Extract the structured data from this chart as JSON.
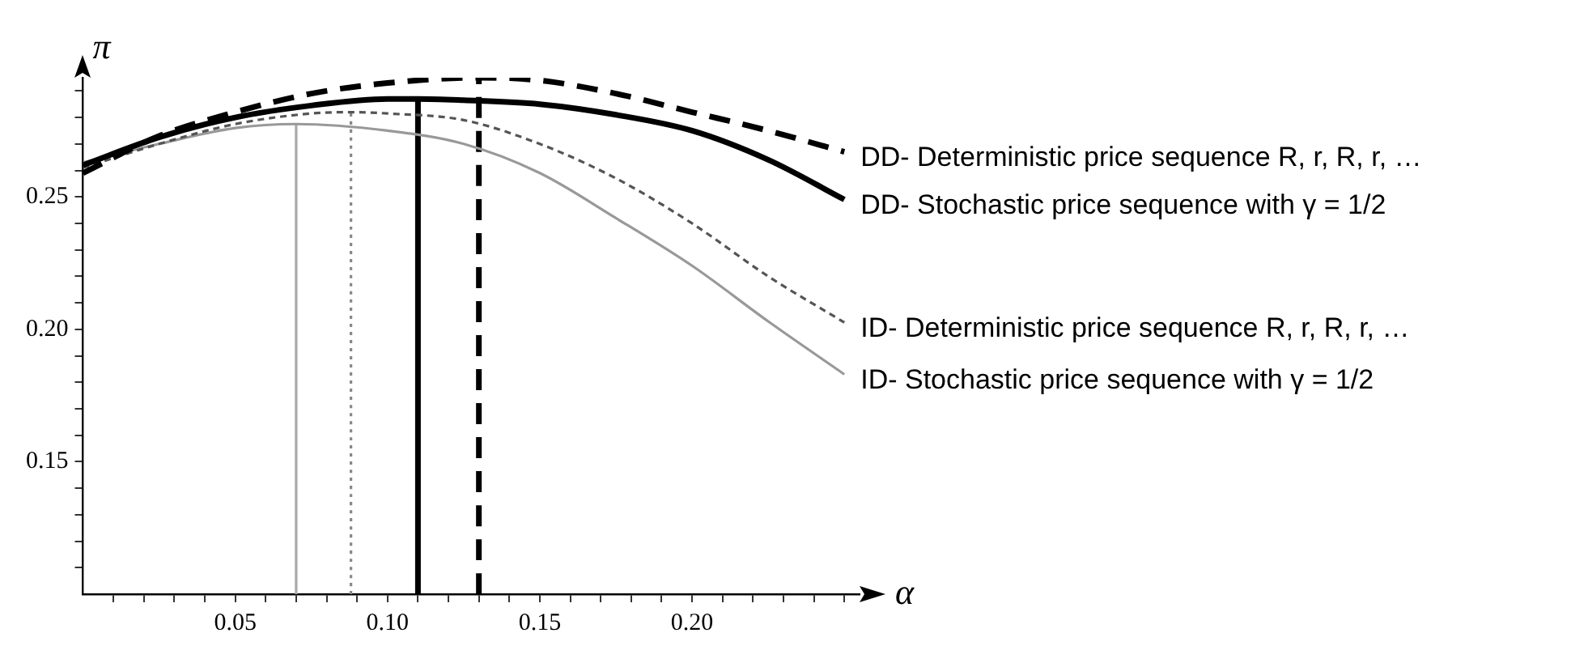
{
  "chart_data": {
    "type": "line",
    "xlabel": "α",
    "ylabel": "π",
    "xlim": [
      0,
      0.255
    ],
    "ylim": [
      0.1,
      0.295
    ],
    "xticks": [
      {
        "value": 0.01,
        "label": null
      },
      {
        "value": 0.02,
        "label": null
      },
      {
        "value": 0.03,
        "label": null
      },
      {
        "value": 0.04,
        "label": null
      },
      0.05,
      {
        "value": 0.06,
        "label": null
      },
      {
        "value": 0.07,
        "label": null
      },
      {
        "value": 0.08,
        "label": null
      },
      {
        "value": 0.09,
        "label": null
      },
      {
        "value": 0.1,
        "label": "0.10"
      },
      {
        "value": 0.11,
        "label": null
      },
      {
        "value": 0.12,
        "label": null
      },
      {
        "value": 0.13,
        "label": null
      },
      {
        "value": 0.14,
        "label": null
      },
      0.15,
      {
        "value": 0.16,
        "label": null
      },
      {
        "value": 0.17,
        "label": null
      },
      {
        "value": 0.18,
        "label": null
      },
      {
        "value": 0.19,
        "label": null
      },
      {
        "value": 0.2,
        "label": "0.20"
      },
      {
        "value": 0.21,
        "label": null
      },
      {
        "value": 0.22,
        "label": null
      },
      {
        "value": 0.23,
        "label": null
      },
      {
        "value": 0.24,
        "label": null
      },
      {
        "value": 0.25,
        "label": null
      }
    ],
    "yticks": [
      {
        "value": 0.11,
        "label": null
      },
      {
        "value": 0.12,
        "label": null
      },
      {
        "value": 0.13,
        "label": null
      },
      {
        "value": 0.14,
        "label": null
      },
      0.15,
      {
        "value": 0.16,
        "label": null
      },
      {
        "value": 0.17,
        "label": null
      },
      {
        "value": 0.18,
        "label": null
      },
      {
        "value": 0.19,
        "label": null
      },
      {
        "value": 0.2,
        "label": "0.20"
      },
      {
        "value": 0.21,
        "label": null
      },
      {
        "value": 0.22,
        "label": null
      },
      {
        "value": 0.23,
        "label": null
      },
      {
        "value": 0.24,
        "label": null
      },
      0.25,
      {
        "value": 0.26,
        "label": null
      },
      {
        "value": 0.27,
        "label": null
      },
      {
        "value": 0.28,
        "label": null
      },
      {
        "value": 0.29,
        "label": null
      }
    ],
    "grid": false,
    "legend": false,
    "marker": "none",
    "series": [
      {
        "name": "DD- Deterministic price sequence R, r, R, r, …",
        "color": "#000000",
        "line_style": "dashed",
        "x": [
          0,
          0.025,
          0.05,
          0.075,
          0.1,
          0.13,
          0.15,
          0.175,
          0.2,
          0.225,
          0.25
        ],
        "values": [
          0.259,
          0.273,
          0.282,
          0.289,
          0.293,
          0.295,
          0.294,
          0.289,
          0.282,
          0.275,
          0.267
        ]
      },
      {
        "name": "DD- Stochastic price sequence with γ = 1/2",
        "color": "#000000",
        "line_style": "solid",
        "x": [
          0,
          0.025,
          0.05,
          0.075,
          0.1,
          0.11,
          0.125,
          0.15,
          0.175,
          0.2,
          0.225,
          0.25
        ],
        "values": [
          0.262,
          0.2725,
          0.28,
          0.2845,
          0.287,
          0.287,
          0.2865,
          0.285,
          0.281,
          0.275,
          0.264,
          0.249
        ]
      },
      {
        "name": "ID- Deterministic price sequence R, r, R, r, …",
        "color": "#555555",
        "line_style": "dashed",
        "x": [
          0,
          0.025,
          0.05,
          0.075,
          0.088,
          0.1,
          0.125,
          0.15,
          0.175,
          0.2,
          0.225,
          0.25
        ],
        "values": [
          0.261,
          0.27,
          0.2775,
          0.2815,
          0.282,
          0.2815,
          0.279,
          0.27,
          0.257,
          0.24,
          0.22,
          0.2026
        ]
      },
      {
        "name": "ID- Stochastic price sequence with γ = 1/2",
        "color": "#999999",
        "line_style": "solid",
        "x": [
          0,
          0.025,
          0.05,
          0.07,
          0.1,
          0.125,
          0.15,
          0.175,
          0.2,
          0.225,
          0.25
        ],
        "values": [
          0.263,
          0.27,
          0.276,
          0.2775,
          0.275,
          0.27,
          0.259,
          0.242,
          0.224,
          0.203,
          0.183
        ]
      },
      {
        "color": "#000000",
        "line_style": "dashed",
        "x": [
          0.13,
          0.13
        ],
        "values": [
          0.1,
          0.295
        ]
      },
      {
        "color": "#000000",
        "line_style": "solid",
        "x": [
          0.11,
          0.11
        ],
        "values": [
          0.1,
          0.287
        ]
      },
      {
        "color": "#888888",
        "line_style": "dotted",
        "x": [
          0.088,
          0.088
        ],
        "values": [
          0.1,
          0.282
        ]
      },
      {
        "color": "#aaaaaa",
        "line_style": "solid",
        "x": [
          0.07,
          0.07
        ],
        "values": [
          0.1,
          0.2775
        ]
      }
    ]
  }
}
